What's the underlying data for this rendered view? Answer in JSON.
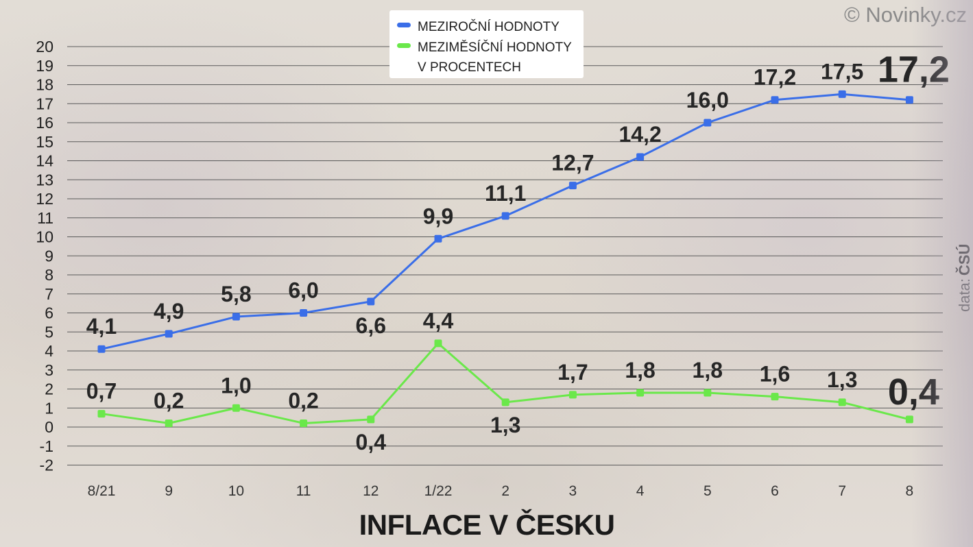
{
  "brand": "© Novinky.cz",
  "source": {
    "prefix": "data:",
    "name": "ČSÚ"
  },
  "legend": {
    "items": [
      {
        "label": "MEZIROČNÍ HODNOTY",
        "color": "#3a6ee8"
      },
      {
        "label": "MEZIMĚSÍČNÍ HODNOTY",
        "color": "#6ae84a"
      }
    ],
    "note": "V PROCENTECH"
  },
  "chart_data": {
    "type": "line",
    "title": "INFLACE V ČESKU",
    "xlabel": "",
    "ylabel": "",
    "categories": [
      "8/21",
      "9",
      "10",
      "11",
      "12",
      "1/22",
      "2",
      "3",
      "4",
      "5",
      "6",
      "7",
      "8"
    ],
    "ylim": [
      -2,
      20
    ],
    "yticks": [
      20,
      19,
      18,
      17,
      16,
      15,
      14,
      13,
      12,
      11,
      10,
      9,
      8,
      7,
      6,
      5,
      4,
      3,
      2,
      1,
      0,
      -1,
      -2
    ],
    "grid": true,
    "legend_position": "top",
    "series": [
      {
        "name": "MEZIROČNÍ HODNOTY",
        "color": "#3a6ee8",
        "values": [
          4.1,
          4.9,
          5.8,
          6.0,
          6.6,
          9.9,
          11.1,
          12.7,
          14.2,
          16.0,
          17.2,
          17.5,
          17.2
        ],
        "labels": [
          "4,1",
          "4,9",
          "5,8",
          "6,0",
          "6,6",
          "9,9",
          "11,1",
          "12,7",
          "14,2",
          "16,0",
          "17,2",
          "17,5",
          "17,2"
        ]
      },
      {
        "name": "MEZIMĚSÍČNÍ HODNOTY",
        "color": "#6ae84a",
        "values": [
          0.7,
          0.2,
          1.0,
          0.2,
          0.4,
          4.4,
          1.3,
          1.7,
          1.8,
          1.8,
          1.6,
          1.3,
          0.4
        ],
        "labels": [
          "0,7",
          "0,2",
          "1,0",
          "0,2",
          "0,4",
          "4,4",
          "1,3",
          "1,7",
          "1,8",
          "1,8",
          "1,6",
          "1,3",
          "0,4"
        ]
      }
    ]
  }
}
